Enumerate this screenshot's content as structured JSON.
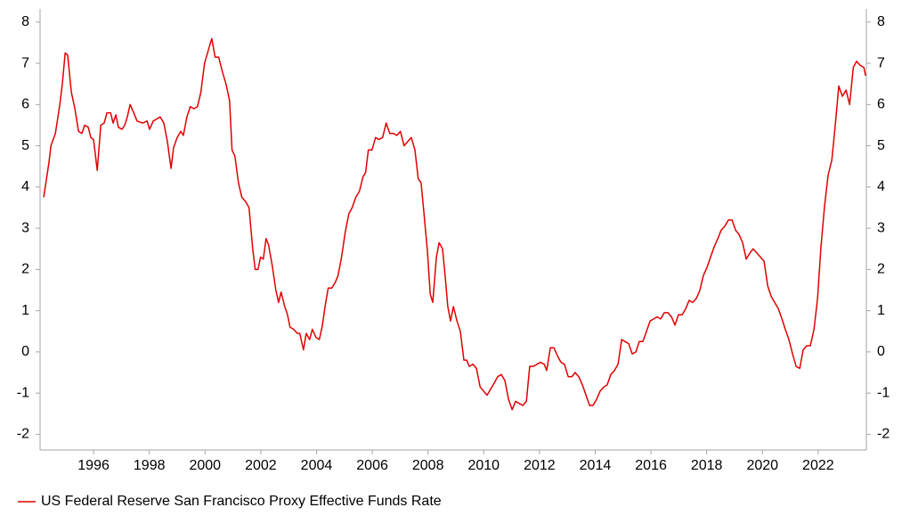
{
  "chart_data": {
    "type": "line",
    "x": [
      1994.21,
      1994.4,
      1994.47,
      1994.63,
      1994.79,
      1994.88,
      1994.98,
      1995.07,
      1995.2,
      1995.33,
      1995.46,
      1995.58,
      1995.68,
      1995.81,
      1995.9,
      1996.0,
      1996.13,
      1996.26,
      1996.38,
      1996.48,
      1996.61,
      1996.7,
      1996.8,
      1996.89,
      1997.02,
      1997.12,
      1997.21,
      1997.31,
      1997.44,
      1997.56,
      1997.76,
      1997.92,
      1998.01,
      1998.14,
      1998.27,
      1998.39,
      1998.52,
      1998.65,
      1998.78,
      1998.87,
      1999.0,
      1999.13,
      1999.22,
      1999.35,
      1999.47,
      1999.6,
      1999.73,
      1999.85,
      1999.98,
      2000.11,
      2000.24,
      2000.36,
      2000.49,
      2000.62,
      2000.75,
      2000.88,
      2000.97,
      2001.07,
      2001.2,
      2001.32,
      2001.45,
      2001.58,
      2001.71,
      2001.8,
      2001.9,
      2001.99,
      2002.09,
      2002.19,
      2002.28,
      2002.41,
      2002.54,
      2002.64,
      2002.73,
      2002.86,
      2002.96,
      2003.05,
      2003.18,
      2003.31,
      2003.4,
      2003.53,
      2003.63,
      2003.75,
      2003.85,
      2003.98,
      2004.1,
      2004.2,
      2004.33,
      2004.42,
      2004.55,
      2004.68,
      2004.77,
      2004.9,
      2005.03,
      2005.16,
      2005.28,
      2005.41,
      2005.54,
      2005.67,
      2005.76,
      2005.86,
      2005.99,
      2006.12,
      2006.24,
      2006.37,
      2006.5,
      2006.63,
      2006.76,
      2006.88,
      2007.01,
      2007.14,
      2007.27,
      2007.4,
      2007.53,
      2007.65,
      2007.75,
      2007.85,
      2007.98,
      2008.08,
      2008.17,
      2008.3,
      2008.4,
      2008.52,
      2008.62,
      2008.71,
      2008.81,
      2008.91,
      2009.04,
      2009.16,
      2009.29,
      2009.39,
      2009.48,
      2009.61,
      2009.74,
      2009.87,
      2009.99,
      2010.12,
      2010.25,
      2010.38,
      2010.5,
      2010.63,
      2010.76,
      2010.89,
      2011.02,
      2011.14,
      2011.27,
      2011.4,
      2011.53,
      2011.65,
      2011.78,
      2011.91,
      2012.04,
      2012.17,
      2012.26,
      2012.39,
      2012.52,
      2012.65,
      2012.77,
      2012.9,
      2013.03,
      2013.16,
      2013.28,
      2013.41,
      2013.54,
      2013.67,
      2013.8,
      2013.92,
      2014.05,
      2014.18,
      2014.31,
      2014.43,
      2014.56,
      2014.69,
      2014.82,
      2014.95,
      2015.07,
      2015.2,
      2015.33,
      2015.46,
      2015.58,
      2015.71,
      2015.84,
      2015.97,
      2016.1,
      2016.22,
      2016.35,
      2016.48,
      2016.61,
      2016.74,
      2016.86,
      2016.99,
      2017.12,
      2017.25,
      2017.37,
      2017.5,
      2017.63,
      2017.76,
      2017.88,
      2018.01,
      2018.14,
      2018.27,
      2018.4,
      2018.52,
      2018.65,
      2018.78,
      2018.91,
      2019.04,
      2019.16,
      2019.29,
      2019.42,
      2019.55,
      2019.67,
      2019.8,
      2019.93,
      2020.06,
      2020.19,
      2020.31,
      2020.44,
      2020.57,
      2020.7,
      2020.82,
      2020.95,
      2021.08,
      2021.21,
      2021.34,
      2021.46,
      2021.59,
      2021.72,
      2021.85,
      2021.98,
      2022.1,
      2022.23,
      2022.36,
      2022.49,
      2022.62,
      2022.74,
      2022.87,
      2023.0,
      2023.13,
      2023.26,
      2023.38,
      2023.51,
      2023.64,
      2023.7
    ],
    "series": [
      {
        "name": "US Federal Reserve San Francisco Proxy Effective Funds Rate",
        "color": "#e00000",
        "values": [
          3.75,
          4.6,
          5.0,
          5.3,
          6.0,
          6.5,
          7.25,
          7.2,
          6.3,
          5.9,
          5.35,
          5.3,
          5.5,
          5.45,
          5.2,
          5.15,
          4.4,
          5.5,
          5.55,
          5.8,
          5.8,
          5.55,
          5.75,
          5.45,
          5.4,
          5.5,
          5.7,
          6.0,
          5.8,
          5.6,
          5.55,
          5.6,
          5.4,
          5.6,
          5.65,
          5.7,
          5.55,
          5.1,
          4.45,
          4.95,
          5.2,
          5.35,
          5.25,
          5.7,
          5.95,
          5.9,
          5.95,
          6.3,
          7.0,
          7.3,
          7.6,
          7.15,
          7.15,
          6.8,
          6.5,
          6.1,
          4.9,
          4.75,
          4.1,
          3.75,
          3.65,
          3.5,
          2.5,
          2.0,
          2.0,
          2.3,
          2.25,
          2.75,
          2.6,
          2.1,
          1.5,
          1.2,
          1.45,
          1.1,
          0.9,
          0.6,
          0.55,
          0.45,
          0.45,
          0.05,
          0.45,
          0.3,
          0.55,
          0.35,
          0.3,
          0.6,
          1.2,
          1.55,
          1.55,
          1.7,
          1.85,
          2.3,
          2.9,
          3.35,
          3.5,
          3.75,
          3.9,
          4.25,
          4.35,
          4.9,
          4.9,
          5.2,
          5.15,
          5.2,
          5.55,
          5.3,
          5.3,
          5.25,
          5.35,
          5.0,
          5.1,
          5.2,
          4.9,
          4.2,
          4.1,
          3.4,
          2.45,
          1.4,
          1.2,
          2.3,
          2.65,
          2.5,
          1.8,
          1.1,
          0.75,
          1.1,
          0.75,
          0.5,
          -0.2,
          -0.2,
          -0.35,
          -0.3,
          -0.4,
          -0.85,
          -0.95,
          -1.05,
          -0.9,
          -0.75,
          -0.6,
          -0.55,
          -0.7,
          -1.15,
          -1.4,
          -1.2,
          -1.25,
          -1.3,
          -1.2,
          -0.35,
          -0.35,
          -0.3,
          -0.25,
          -0.3,
          -0.45,
          0.1,
          0.1,
          -0.1,
          -0.25,
          -0.3,
          -0.6,
          -0.6,
          -0.5,
          -0.6,
          -0.8,
          -1.05,
          -1.3,
          -1.3,
          -1.15,
          -0.95,
          -0.85,
          -0.8,
          -0.55,
          -0.45,
          -0.3,
          0.3,
          0.25,
          0.2,
          -0.05,
          0.0,
          0.25,
          0.25,
          0.5,
          0.75,
          0.8,
          0.85,
          0.8,
          0.95,
          0.95,
          0.85,
          0.65,
          0.9,
          0.9,
          1.05,
          1.25,
          1.2,
          1.3,
          1.5,
          1.85,
          2.05,
          2.3,
          2.55,
          2.75,
          2.95,
          3.05,
          3.2,
          3.2,
          2.95,
          2.85,
          2.65,
          2.25,
          2.4,
          2.5,
          2.4,
          2.3,
          2.2,
          1.6,
          1.35,
          1.2,
          1.05,
          0.8,
          0.55,
          0.3,
          -0.05,
          -0.35,
          -0.4,
          0.05,
          0.15,
          0.15,
          0.55,
          1.3,
          2.55,
          3.55,
          4.3,
          4.65,
          5.55,
          6.45,
          6.2,
          6.35,
          6.0,
          6.9,
          7.05,
          6.95,
          6.9,
          6.7
        ]
      }
    ],
    "xlim": [
      1994.08,
      2023.73
    ],
    "xticks": [
      1996,
      1998,
      2000,
      2002,
      2004,
      2006,
      2008,
      2010,
      2012,
      2014,
      2016,
      2018,
      2020,
      2022
    ],
    "ylim": [
      -2.38,
      8.32
    ],
    "yticks": [
      -2,
      -1,
      0,
      1,
      2,
      3,
      4,
      5,
      6,
      7,
      8
    ],
    "y2lim": [
      -2.38,
      8.32
    ],
    "y2ticks": [
      -2,
      -1,
      0,
      1,
      2,
      3,
      4,
      5,
      6,
      7,
      8
    ],
    "legend": "bottom-left"
  }
}
